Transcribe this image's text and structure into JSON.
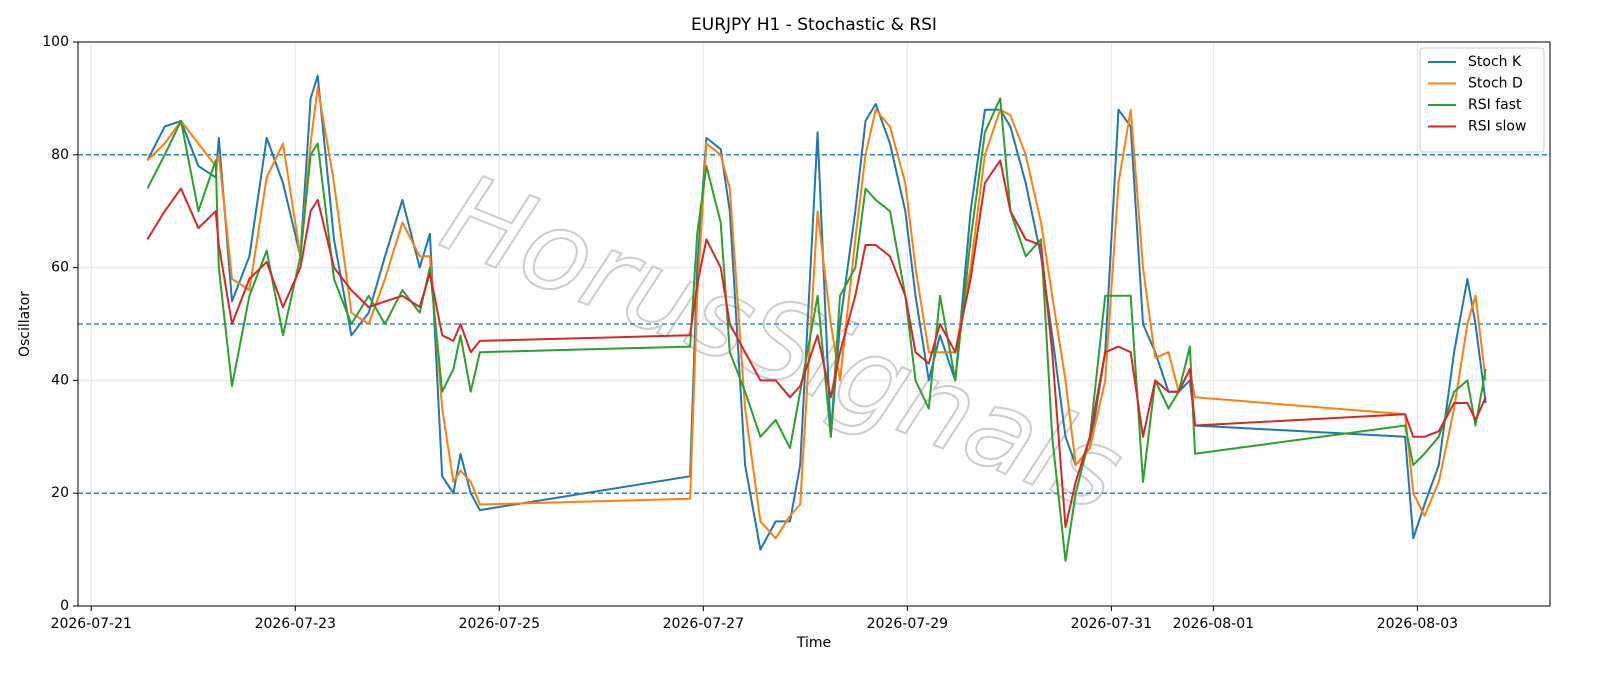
{
  "chart_data": {
    "type": "line",
    "title": "EURJPY H1 - Stochastic & RSI",
    "x_label": "Time",
    "y_label": "Oscillator",
    "watermark": "HorusSignals",
    "x": [
      0.55,
      0.72,
      0.88,
      1.05,
      1.22,
      1.25,
      1.38,
      1.55,
      1.72,
      1.88,
      2.05,
      2.15,
      2.22,
      2.38,
      2.55,
      2.72,
      2.88,
      3.05,
      3.22,
      3.32,
      3.44,
      3.55,
      3.62,
      3.72,
      3.81,
      5.87,
      5.94,
      6.03,
      6.17,
      6.26,
      6.41,
      6.56,
      6.71,
      6.85,
      6.95,
      7.12,
      7.25,
      7.34,
      7.49,
      7.59,
      7.69,
      7.83,
      7.98,
      8.08,
      8.21,
      8.32,
      8.47,
      8.62,
      8.76,
      8.91,
      9.01,
      9.16,
      9.31,
      9.42,
      9.55,
      9.65,
      9.79,
      9.94,
      10.07,
      10.19,
      10.31,
      10.43,
      10.56,
      10.66,
      10.77,
      10.82,
      12.88,
      12.96,
      13.07,
      13.21,
      13.36,
      13.49,
      13.57,
      13.67
    ],
    "series": [
      {
        "name": "Stoch K",
        "color": "#1f77b4",
        "values": [
          79,
          85,
          86,
          78,
          76,
          83,
          54,
          62,
          83,
          75,
          62,
          90,
          94,
          65,
          48,
          52,
          62,
          72,
          60,
          66,
          23,
          20,
          27,
          20,
          17,
          23,
          60,
          83,
          81,
          70,
          25,
          10,
          15,
          15,
          25,
          84,
          30,
          50,
          70,
          86,
          89,
          82,
          70,
          55,
          40,
          48,
          40,
          70,
          88,
          88,
          85,
          75,
          62,
          48,
          30,
          25,
          28,
          45,
          88,
          85,
          50,
          45,
          38,
          38,
          40,
          32,
          30,
          12,
          18,
          25,
          45,
          58,
          50,
          36
        ]
      },
      {
        "name": "Stoch D",
        "color": "#ff7f0e",
        "values": [
          79,
          82,
          86,
          82,
          78,
          80,
          58,
          56,
          76,
          82,
          62,
          82,
          92,
          75,
          52,
          50,
          58,
          68,
          62,
          62,
          35,
          22,
          24,
          22,
          18,
          19,
          55,
          82,
          80,
          74,
          35,
          15,
          12,
          16,
          18,
          70,
          50,
          40,
          65,
          80,
          88,
          85,
          75,
          60,
          45,
          45,
          45,
          60,
          80,
          88,
          87,
          80,
          68,
          55,
          40,
          25,
          28,
          40,
          75,
          88,
          60,
          44,
          45,
          38,
          42,
          37,
          34,
          20,
          16,
          22,
          35,
          50,
          55,
          40
        ]
      },
      {
        "name": "RSI fast",
        "color": "#2ca02c",
        "values": [
          74,
          80,
          86,
          70,
          79,
          60,
          39,
          55,
          63,
          48,
          62,
          80,
          82,
          58,
          50,
          55,
          50,
          56,
          52,
          60,
          38,
          42,
          48,
          38,
          45,
          46,
          66,
          78,
          68,
          45,
          38,
          30,
          33,
          28,
          38,
          55,
          30,
          55,
          60,
          74,
          72,
          70,
          55,
          40,
          35,
          55,
          40,
          65,
          84,
          90,
          70,
          62,
          65,
          30,
          8,
          20,
          30,
          55,
          55,
          55,
          22,
          40,
          35,
          38,
          46,
          27,
          32,
          25,
          27,
          30,
          38,
          40,
          32,
          42
        ]
      },
      {
        "name": "RSI slow",
        "color": "#d62728",
        "values": [
          65,
          70,
          74,
          67,
          70,
          64,
          50,
          58,
          61,
          53,
          60,
          70,
          72,
          60,
          56,
          53,
          54,
          55,
          53,
          59,
          48,
          47,
          50,
          45,
          47,
          48,
          57,
          65,
          60,
          50,
          45,
          40,
          40,
          37,
          39,
          48,
          37,
          45,
          55,
          64,
          64,
          62,
          55,
          45,
          43,
          50,
          45,
          58,
          75,
          79,
          70,
          65,
          64,
          45,
          14,
          22,
          30,
          45,
          46,
          45,
          30,
          40,
          38,
          38,
          42,
          32,
          34,
          30,
          30,
          31,
          36,
          36,
          33,
          37
        ]
      }
    ],
    "xlim": [
      -0.13,
      14.3
    ],
    "xticks": [
      {
        "value": 0,
        "label": "2026-07-21"
      },
      {
        "value": 2,
        "label": "2026-07-23"
      },
      {
        "value": 4,
        "label": "2026-07-25"
      },
      {
        "value": 6,
        "label": "2026-07-27"
      },
      {
        "value": 8,
        "label": "2026-07-29"
      },
      {
        "value": 10,
        "label": "2026-07-31"
      },
      {
        "value": 11,
        "label": "2026-08-01"
      },
      {
        "value": 13,
        "label": "2026-08-03"
      }
    ],
    "ylim": [
      0,
      100
    ],
    "yticks": [
      0,
      20,
      40,
      60,
      80,
      100
    ],
    "hlines": [
      20,
      50,
      80
    ],
    "hline_color": "#1f77b4",
    "grid": true,
    "legend": "upper right"
  }
}
